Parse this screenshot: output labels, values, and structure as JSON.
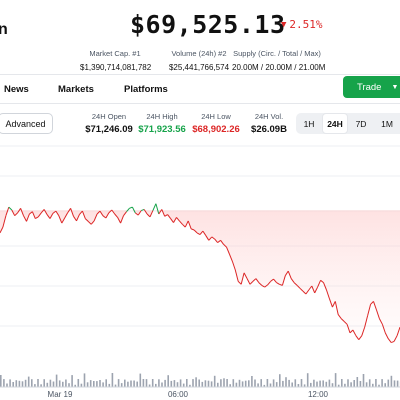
{
  "header": {
    "title_fragment": "n",
    "price": "$69,525.13",
    "change": "2.51%",
    "change_direction": "down",
    "stats": [
      {
        "label": "Market Cap. #1",
        "value": "$1,390,714,081,782"
      },
      {
        "label": "Volume (24h) #2",
        "value": "$25,441,766,574"
      },
      {
        "label": "Supply (Circ. / Total / Max)",
        "value": "20.00M / 20.00M / 21.00M"
      }
    ]
  },
  "nav": {
    "items": [
      "News",
      "Markets",
      "Platforms"
    ],
    "trade_label": "Trade"
  },
  "toolbar": {
    "advanced_label": "Advanced",
    "ohlc": [
      {
        "label": "24H Open",
        "value": "$71,246.09",
        "color": "#111111"
      },
      {
        "label": "24H High",
        "value": "$71,923.56",
        "color": "#16a34a"
      },
      {
        "label": "24H Low",
        "value": "$68,902.26",
        "color": "#dc2626"
      },
      {
        "label": "24H Vol.",
        "value": "$26.09B",
        "color": "#111111"
      }
    ],
    "ranges": [
      "1H",
      "24H",
      "7D",
      "1M"
    ],
    "active_range": "24H"
  },
  "colors": {
    "up": "#16a34a",
    "down": "#dc2626",
    "trade_button": "#16a34a"
  },
  "chart_data": {
    "type": "line",
    "x_tick_labels": [
      "Mar 19",
      "06:00",
      "12:00"
    ],
    "baseline": 71246.09,
    "y_range_approx": [
      68800,
      71950
    ],
    "prices": [
      70850,
      70950,
      71150,
      71300,
      71250,
      71150,
      71200,
      71280,
      71150,
      71050,
      71180,
      71220,
      71100,
      71130,
      71200,
      71260,
      71170,
      71100,
      71190,
      71230,
      71150,
      71020,
      71110,
      71200,
      71280,
      71140,
      71060,
      71170,
      71230,
      71100,
      71050,
      71000,
      71060,
      71180,
      71230,
      71150,
      71110,
      71200,
      71250,
      71180,
      71120,
      71020,
      71150,
      71220,
      71280,
      71300,
      71200,
      71160,
      71240,
      71260,
      71180,
      71130,
      71240,
      71360,
      71180,
      71260,
      71140,
      71170,
      71100,
      71030,
      71120,
      71060,
      71000,
      70950,
      71060,
      70920,
      70900,
      70850,
      70820,
      70880,
      70800,
      70720,
      70780,
      70740,
      70680,
      70720,
      70650,
      70600,
      70480,
      70350,
      70200,
      70000,
      69950,
      70150,
      70050,
      69950,
      70000,
      70050,
      69980,
      69930,
      69900,
      69940,
      70000,
      70040,
      69980,
      69950,
      69930,
      70100,
      70180,
      70050,
      69980,
      69930,
      69880,
      69830,
      69780,
      69850,
      69920,
      69800,
      69900,
      70020,
      69980,
      69850,
      69700,
      69550,
      69650,
      69420,
      69350,
      69300,
      69250,
      69100,
      69150,
      69050,
      68980,
      69050,
      69200,
      69400,
      69600,
      69650,
      69500,
      69350,
      69250,
      69100,
      69000,
      68930,
      68950,
      69050,
      69200
    ]
  }
}
